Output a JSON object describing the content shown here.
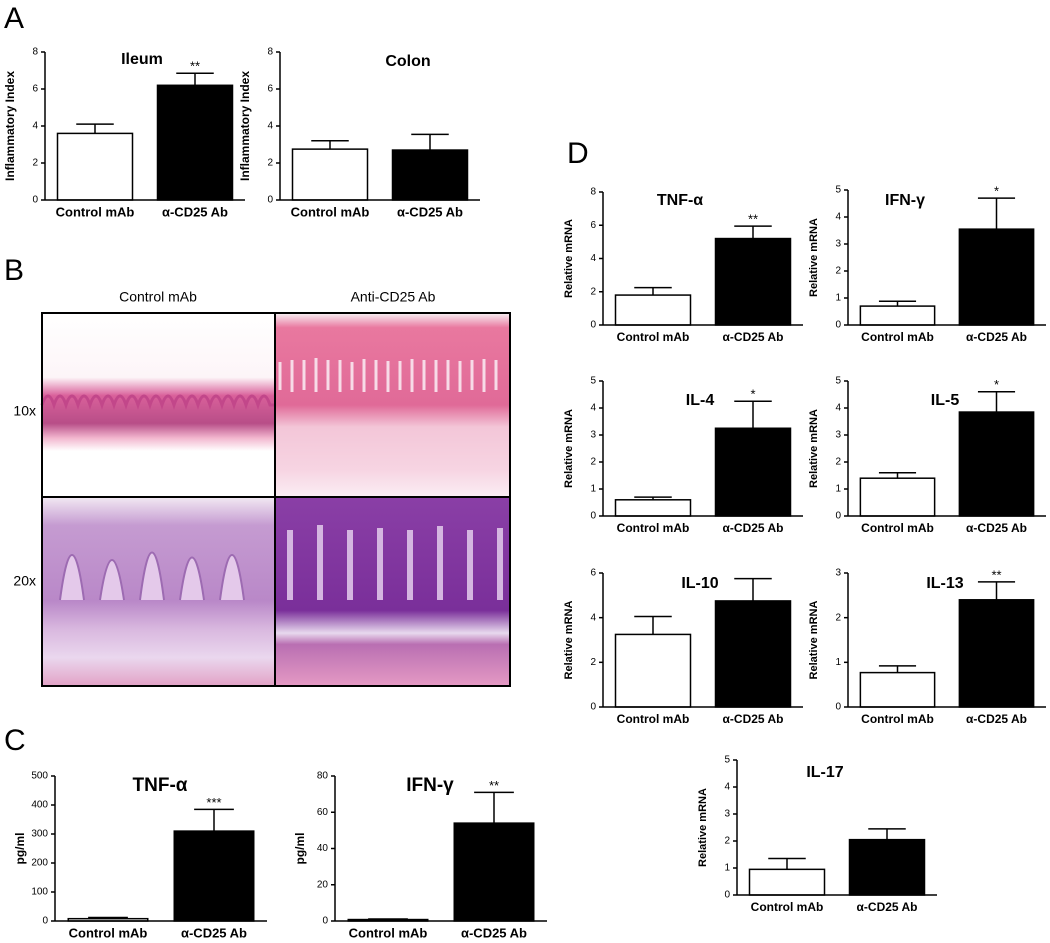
{
  "panel_labels": [
    "A",
    "B",
    "C",
    "D"
  ],
  "histology": {
    "columns": [
      "Control mAb",
      "Anti-CD25 Ab"
    ],
    "rows": [
      "10x",
      "20x"
    ]
  },
  "chart_data": [
    {
      "type": "bar",
      "title": "Ileum",
      "y_label": "Inflammatory Index",
      "categories": [
        "Control mAb",
        "α-CD25 Ab"
      ],
      "values": [
        3.6,
        6.2
      ],
      "errors": [
        0.5,
        0.65
      ],
      "annotations": [
        null,
        "**"
      ],
      "colors": [
        "#ffffff",
        "#000000"
      ],
      "ylim": [
        0,
        8
      ],
      "yticks": [
        0,
        2,
        4,
        6,
        8
      ]
    },
    {
      "type": "bar",
      "title": "Colon",
      "y_label": "Inflammatory Index",
      "categories": [
        "Control mAb",
        "α-CD25 Ab"
      ],
      "values": [
        2.75,
        2.7
      ],
      "errors": [
        0.45,
        0.85
      ],
      "annotations": [
        null,
        null
      ],
      "colors": [
        "#ffffff",
        "#000000"
      ],
      "ylim": [
        0,
        8
      ],
      "yticks": [
        0,
        2,
        4,
        6,
        8
      ]
    },
    {
      "type": "bar",
      "title": "TNF-α",
      "y_label": "pg/ml",
      "categories": [
        "Control mAb",
        "α-CD25 Ab"
      ],
      "values": [
        8,
        310
      ],
      "errors": [
        4,
        75
      ],
      "annotations": [
        null,
        "***"
      ],
      "colors": [
        "#ffffff",
        "#000000"
      ],
      "ylim": [
        0,
        500
      ],
      "yticks": [
        0,
        100,
        200,
        300,
        400,
        500
      ]
    },
    {
      "type": "bar",
      "title": "IFN-γ",
      "y_label": "pg/ml",
      "categories": [
        "Control mAb",
        "α-CD25 Ab"
      ],
      "values": [
        0.8,
        54
      ],
      "errors": [
        0.3,
        17
      ],
      "annotations": [
        null,
        "**"
      ],
      "colors": [
        "#ffffff",
        "#000000"
      ],
      "ylim": [
        0,
        80
      ],
      "yticks": [
        0,
        20,
        40,
        60,
        80
      ]
    },
    {
      "type": "bar",
      "title": "TNF-α",
      "y_label": "Relative mRNA",
      "categories": [
        "Control mAb",
        "α-CD25 Ab"
      ],
      "values": [
        1.8,
        5.2
      ],
      "errors": [
        0.45,
        0.75
      ],
      "annotations": [
        null,
        "**"
      ],
      "colors": [
        "#ffffff",
        "#000000"
      ],
      "ylim": [
        0,
        8
      ],
      "yticks": [
        0,
        2,
        4,
        6,
        8
      ]
    },
    {
      "type": "bar",
      "title": "IFN-γ",
      "y_label": "Relative mRNA",
      "categories": [
        "Control mAb",
        "α-CD25 Ab"
      ],
      "values": [
        0.7,
        3.55
      ],
      "errors": [
        0.18,
        1.15
      ],
      "annotations": [
        null,
        "*"
      ],
      "colors": [
        "#ffffff",
        "#000000"
      ],
      "ylim": [
        0,
        5
      ],
      "yticks": [
        0,
        1,
        2,
        3,
        4,
        5
      ]
    },
    {
      "type": "bar",
      "title": "IL-4",
      "y_label": "Relative mRNA",
      "categories": [
        "Control mAb",
        "α-CD25 Ab"
      ],
      "values": [
        0.6,
        3.25
      ],
      "errors": [
        0.1,
        1.0
      ],
      "annotations": [
        null,
        "*"
      ],
      "colors": [
        "#ffffff",
        "#000000"
      ],
      "ylim": [
        0,
        5
      ],
      "yticks": [
        0,
        1,
        2,
        3,
        4,
        5
      ]
    },
    {
      "type": "bar",
      "title": "IL-5",
      "y_label": "Relative mRNA",
      "categories": [
        "Control mAb",
        "α-CD25 Ab"
      ],
      "values": [
        1.4,
        3.85
      ],
      "errors": [
        0.2,
        0.75
      ],
      "annotations": [
        null,
        "*"
      ],
      "colors": [
        "#ffffff",
        "#000000"
      ],
      "ylim": [
        0,
        5
      ],
      "yticks": [
        0,
        1,
        2,
        3,
        4,
        5
      ]
    },
    {
      "type": "bar",
      "title": "IL-10",
      "y_label": "Relative mRNA",
      "categories": [
        "Control mAb",
        "α-CD25 Ab"
      ],
      "values": [
        3.25,
        4.75
      ],
      "errors": [
        0.8,
        1.0
      ],
      "annotations": [
        null,
        null
      ],
      "colors": [
        "#ffffff",
        "#000000"
      ],
      "ylim": [
        0,
        6
      ],
      "yticks": [
        0,
        2,
        4,
        6
      ]
    },
    {
      "type": "bar",
      "title": "IL-13",
      "y_label": "Relative mRNA",
      "categories": [
        "Control mAb",
        "α-CD25 Ab"
      ],
      "values": [
        0.77,
        2.4
      ],
      "errors": [
        0.15,
        0.4
      ],
      "annotations": [
        null,
        "**"
      ],
      "colors": [
        "#ffffff",
        "#000000"
      ],
      "ylim": [
        0,
        3
      ],
      "yticks": [
        0,
        1,
        2,
        3
      ]
    },
    {
      "type": "bar",
      "title": "IL-17",
      "y_label": "Relative mRNA",
      "categories": [
        "Control mAb",
        "α-CD25 Ab"
      ],
      "values": [
        0.95,
        2.05
      ],
      "errors": [
        0.4,
        0.4
      ],
      "annotations": [
        null,
        null
      ],
      "colors": [
        "#ffffff",
        "#000000"
      ],
      "ylim": [
        0,
        5
      ],
      "yticks": [
        0,
        1,
        2,
        3,
        4,
        5
      ]
    }
  ]
}
